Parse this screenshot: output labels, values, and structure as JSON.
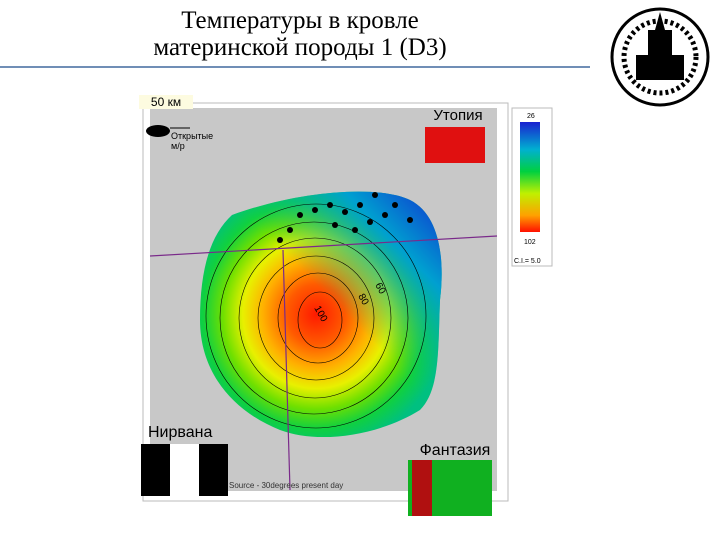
{
  "header": {
    "title_lines": [
      "Температуры в кровле",
      "материнской породы 1 (D3)"
    ]
  },
  "map": {
    "scale_label": "50 км",
    "legend_label_lines": [
      "Открытые",
      "м/р"
    ],
    "regions": [
      "Утопия",
      "Нирвана",
      "Фантазия"
    ],
    "contour_labels": [
      "60",
      "80",
      "100"
    ],
    "source": "Source - 30degrees present day"
  },
  "colorbar": {
    "top": "26",
    "bottom": "102",
    "interval": "C.I.= 5.0"
  }
}
